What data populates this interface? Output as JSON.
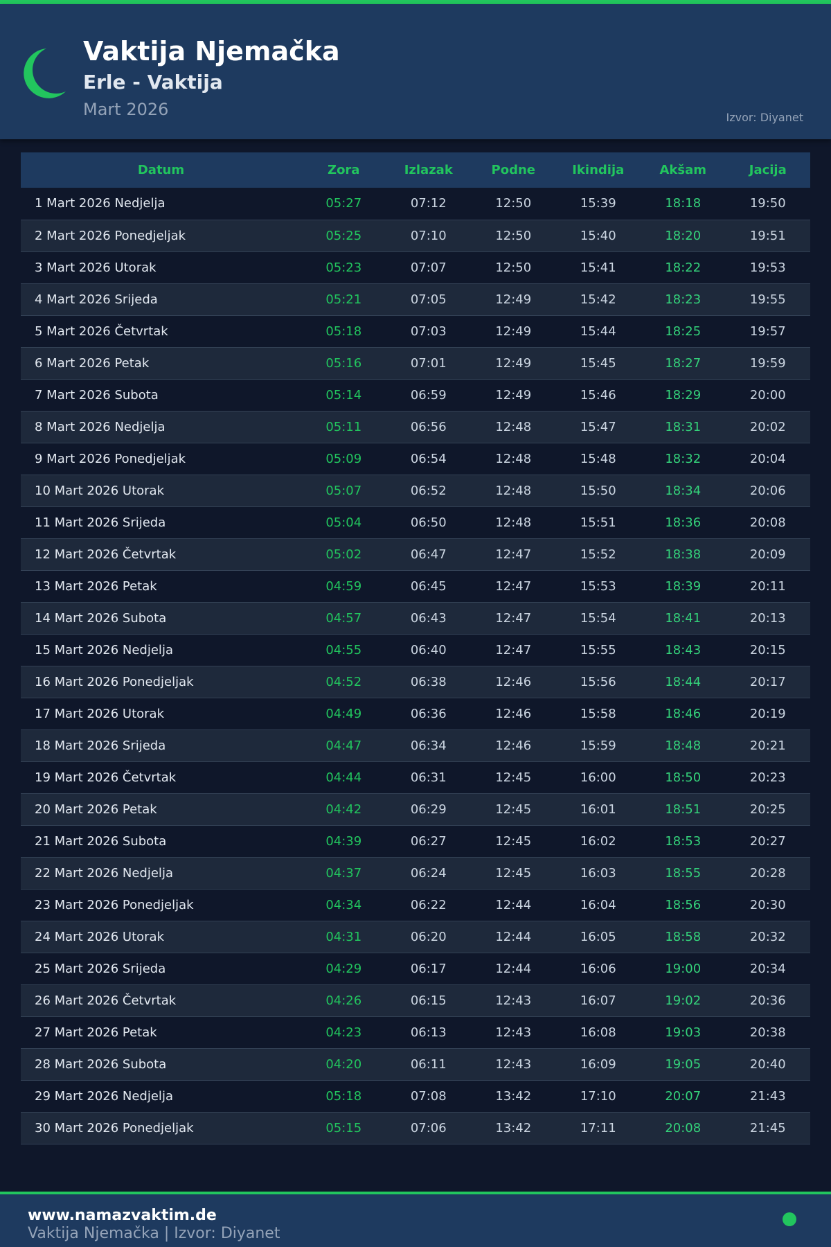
{
  "header": {
    "title": "Vaktija Njemačka",
    "subtitle": "Erle - Vaktija",
    "month": "Mart 2026",
    "source": "Izvor: Diyanet",
    "icon": "crescent-moon-icon"
  },
  "colors": {
    "accent": "#22c55e",
    "header_bg": "#1e3a5f",
    "page_bg": "#0f172a"
  },
  "table": {
    "columns": [
      "Datum",
      "Zora",
      "Izlazak",
      "Podne",
      "Ikindija",
      "Akšam",
      "Jacija"
    ],
    "rows": [
      [
        "1 Mart 2026 Nedjelja",
        "05:27",
        "07:12",
        "12:50",
        "15:39",
        "18:18",
        "19:50"
      ],
      [
        "2 Mart 2026 Ponedjeljak",
        "05:25",
        "07:10",
        "12:50",
        "15:40",
        "18:20",
        "19:51"
      ],
      [
        "3 Mart 2026 Utorak",
        "05:23",
        "07:07",
        "12:50",
        "15:41",
        "18:22",
        "19:53"
      ],
      [
        "4 Mart 2026 Srijeda",
        "05:21",
        "07:05",
        "12:49",
        "15:42",
        "18:23",
        "19:55"
      ],
      [
        "5 Mart 2026 Četvrtak",
        "05:18",
        "07:03",
        "12:49",
        "15:44",
        "18:25",
        "19:57"
      ],
      [
        "6 Mart 2026 Petak",
        "05:16",
        "07:01",
        "12:49",
        "15:45",
        "18:27",
        "19:59"
      ],
      [
        "7 Mart 2026 Subota",
        "05:14",
        "06:59",
        "12:49",
        "15:46",
        "18:29",
        "20:00"
      ],
      [
        "8 Mart 2026 Nedjelja",
        "05:11",
        "06:56",
        "12:48",
        "15:47",
        "18:31",
        "20:02"
      ],
      [
        "9 Mart 2026 Ponedjeljak",
        "05:09",
        "06:54",
        "12:48",
        "15:48",
        "18:32",
        "20:04"
      ],
      [
        "10 Mart 2026 Utorak",
        "05:07",
        "06:52",
        "12:48",
        "15:50",
        "18:34",
        "20:06"
      ],
      [
        "11 Mart 2026 Srijeda",
        "05:04",
        "06:50",
        "12:48",
        "15:51",
        "18:36",
        "20:08"
      ],
      [
        "12 Mart 2026 Četvrtak",
        "05:02",
        "06:47",
        "12:47",
        "15:52",
        "18:38",
        "20:09"
      ],
      [
        "13 Mart 2026 Petak",
        "04:59",
        "06:45",
        "12:47",
        "15:53",
        "18:39",
        "20:11"
      ],
      [
        "14 Mart 2026 Subota",
        "04:57",
        "06:43",
        "12:47",
        "15:54",
        "18:41",
        "20:13"
      ],
      [
        "15 Mart 2026 Nedjelja",
        "04:55",
        "06:40",
        "12:47",
        "15:55",
        "18:43",
        "20:15"
      ],
      [
        "16 Mart 2026 Ponedjeljak",
        "04:52",
        "06:38",
        "12:46",
        "15:56",
        "18:44",
        "20:17"
      ],
      [
        "17 Mart 2026 Utorak",
        "04:49",
        "06:36",
        "12:46",
        "15:58",
        "18:46",
        "20:19"
      ],
      [
        "18 Mart 2026 Srijeda",
        "04:47",
        "06:34",
        "12:46",
        "15:59",
        "18:48",
        "20:21"
      ],
      [
        "19 Mart 2026 Četvrtak",
        "04:44",
        "06:31",
        "12:45",
        "16:00",
        "18:50",
        "20:23"
      ],
      [
        "20 Mart 2026 Petak",
        "04:42",
        "06:29",
        "12:45",
        "16:01",
        "18:51",
        "20:25"
      ],
      [
        "21 Mart 2026 Subota",
        "04:39",
        "06:27",
        "12:45",
        "16:02",
        "18:53",
        "20:27"
      ],
      [
        "22 Mart 2026 Nedjelja",
        "04:37",
        "06:24",
        "12:45",
        "16:03",
        "18:55",
        "20:28"
      ],
      [
        "23 Mart 2026 Ponedjeljak",
        "04:34",
        "06:22",
        "12:44",
        "16:04",
        "18:56",
        "20:30"
      ],
      [
        "24 Mart 2026 Utorak",
        "04:31",
        "06:20",
        "12:44",
        "16:05",
        "18:58",
        "20:32"
      ],
      [
        "25 Mart 2026 Srijeda",
        "04:29",
        "06:17",
        "12:44",
        "16:06",
        "19:00",
        "20:34"
      ],
      [
        "26 Mart 2026 Četvrtak",
        "04:26",
        "06:15",
        "12:43",
        "16:07",
        "19:02",
        "20:36"
      ],
      [
        "27 Mart 2026 Petak",
        "04:23",
        "06:13",
        "12:43",
        "16:08",
        "19:03",
        "20:38"
      ],
      [
        "28 Mart 2026 Subota",
        "04:20",
        "06:11",
        "12:43",
        "16:09",
        "19:05",
        "20:40"
      ],
      [
        "29 Mart 2026 Nedjelja",
        "05:18",
        "07:08",
        "13:42",
        "17:10",
        "20:07",
        "21:43"
      ],
      [
        "30 Mart 2026 Ponedjeljak",
        "05:15",
        "07:06",
        "13:42",
        "17:11",
        "20:08",
        "21:45"
      ]
    ]
  },
  "footer": {
    "url": "www.namazvaktim.de",
    "text": "Vaktija Njemačka | Izvor: Diyanet"
  }
}
